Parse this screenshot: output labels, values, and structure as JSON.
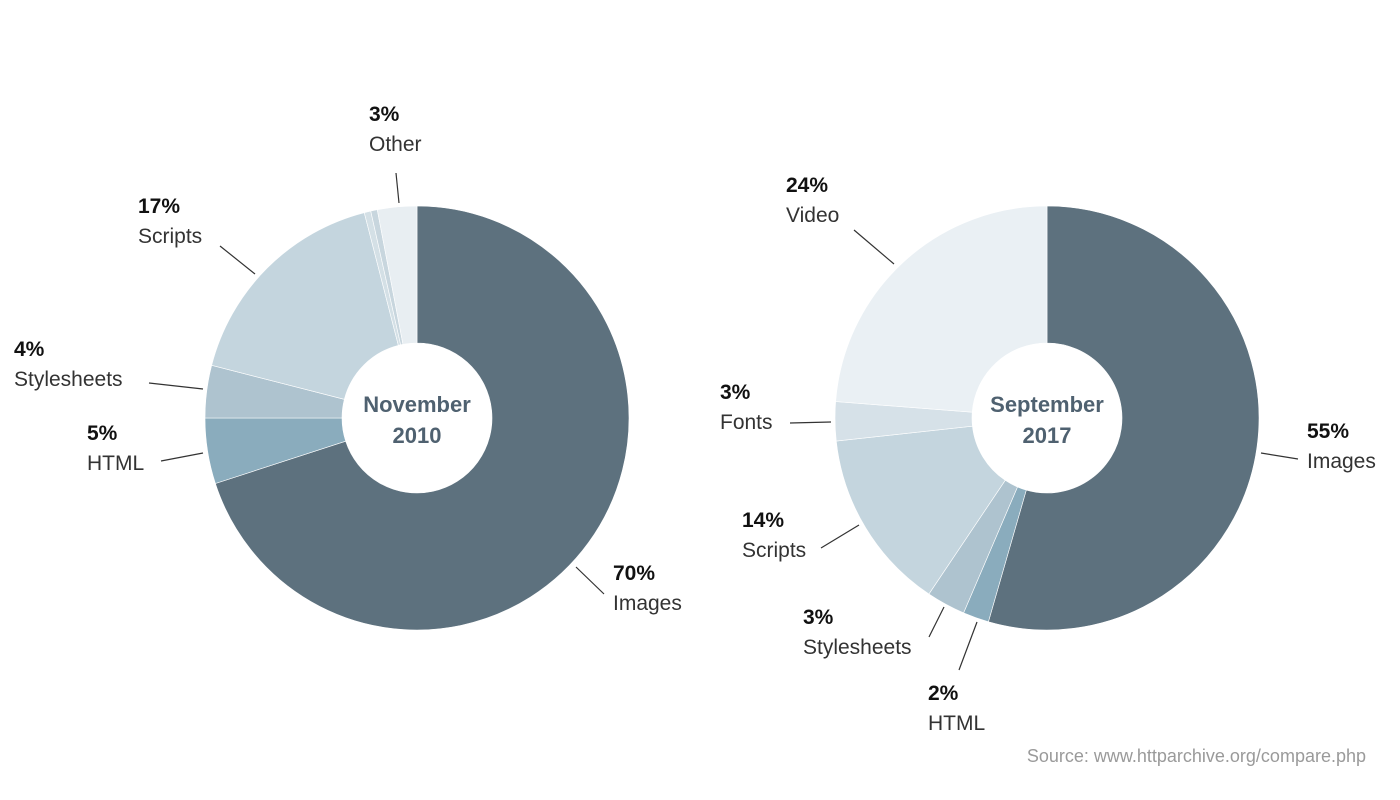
{
  "source": "Source: www.httparchive.org/compare.php",
  "chart_data": [
    {
      "type": "pie",
      "center_label": [
        "November",
        "2010"
      ],
      "slices": [
        {
          "name": "Images",
          "value": 70,
          "pct_label": "70%",
          "color": "#5d717e"
        },
        {
          "name": "HTML",
          "value": 5,
          "pct_label": "5%",
          "color": "#8aacbd"
        },
        {
          "name": "Stylesheets",
          "value": 4,
          "pct_label": "4%",
          "color": "#aec3cf"
        },
        {
          "name": "Scripts",
          "value": 17,
          "pct_label": "17%",
          "color": "#c4d5de"
        },
        {
          "name": "",
          "value": 0.5,
          "pct_label": "",
          "color": "#d4e0e6"
        },
        {
          "name": "",
          "value": 0.5,
          "pct_label": "",
          "color": "#c8d6de"
        },
        {
          "name": "Other",
          "value": 3,
          "pct_label": "3%",
          "color": "#e8eef2"
        }
      ]
    },
    {
      "type": "pie",
      "center_label": [
        "September",
        "2017"
      ],
      "slices": [
        {
          "name": "Images",
          "value": 55,
          "pct_label": "55%",
          "color": "#5d717e"
        },
        {
          "name": "HTML",
          "value": 2,
          "pct_label": "2%",
          "color": "#8aacbd"
        },
        {
          "name": "Stylesheets",
          "value": 3,
          "pct_label": "3%",
          "color": "#aec3cf"
        },
        {
          "name": "Scripts",
          "value": 14,
          "pct_label": "14%",
          "color": "#c4d5de"
        },
        {
          "name": "Fonts",
          "value": 3,
          "pct_label": "3%",
          "color": "#d6e1e8"
        },
        {
          "name": "Video",
          "value": 24,
          "pct_label": "24%",
          "color": "#eaf0f4"
        }
      ]
    }
  ]
}
